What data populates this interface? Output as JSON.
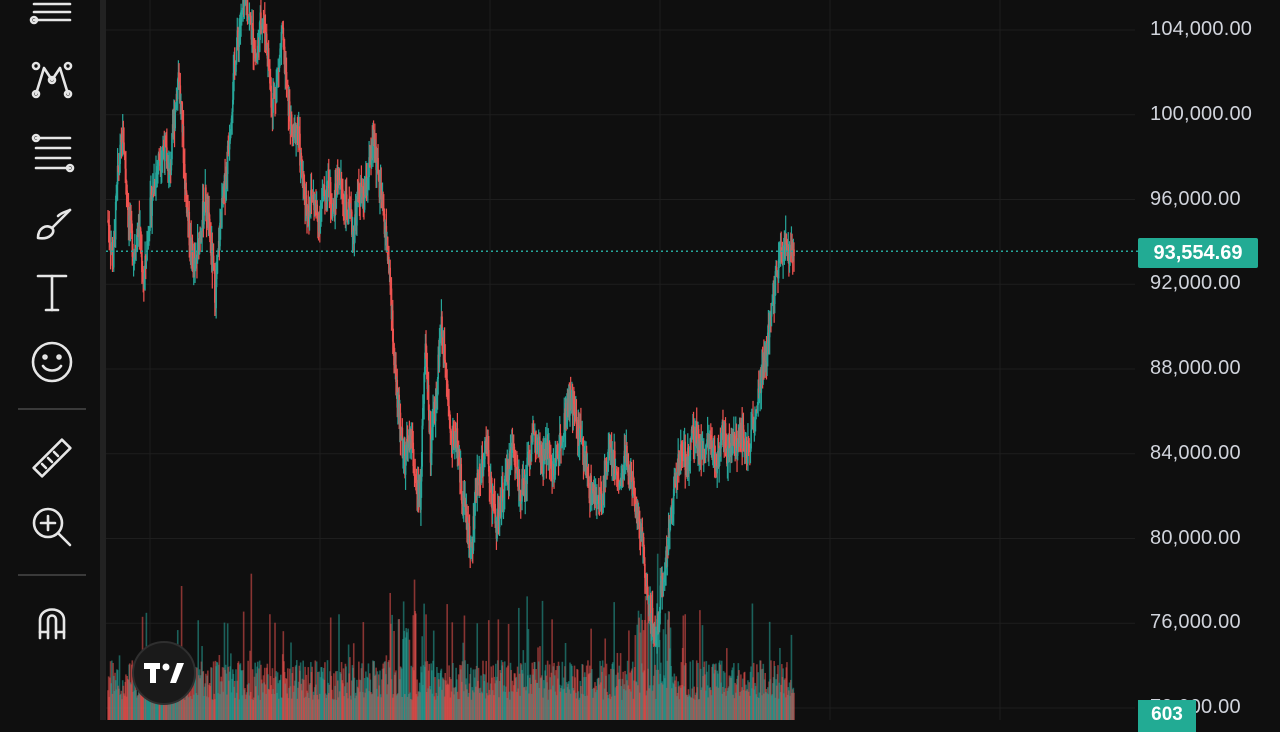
{
  "toolbar": {
    "icons": [
      "horizontal-lines-icon",
      "pattern-icon",
      "fib-retracement-icon",
      "brush-icon",
      "text-icon",
      "emoji-icon",
      "ruler-icon",
      "zoom-in-icon",
      "magnet-icon"
    ]
  },
  "chart_data": {
    "type": "candlestick",
    "title": "",
    "xlabel": "",
    "ylabel": "",
    "y_axis_side": "right",
    "ylim": [
      71000,
      106000
    ],
    "y_ticks": [
      "104,000.00",
      "100,000.00",
      "96,000.00",
      "92,000.00",
      "88,000.00",
      "84,000.00",
      "80,000.00",
      "76,000.00",
      "72,000.00"
    ],
    "last_price": 93554.69,
    "last_price_label": "93,554.69",
    "volume_label": "603",
    "up_color": "#26a69a",
    "down_color": "#ef5350",
    "grid": true,
    "price_path": [
      [
        0,
        95000
      ],
      [
        4,
        93000
      ],
      [
        8,
        97500
      ],
      [
        12,
        99000
      ],
      [
        16,
        95200
      ],
      [
        20,
        93500
      ],
      [
        24,
        94800
      ],
      [
        28,
        92000
      ],
      [
        32,
        95000
      ],
      [
        36,
        96800
      ],
      [
        40,
        98000
      ],
      [
        44,
        98500
      ],
      [
        48,
        97000
      ],
      [
        52,
        100000
      ],
      [
        55,
        102000
      ],
      [
        58,
        99500
      ],
      [
        60,
        97000
      ],
      [
        64,
        94000
      ],
      [
        68,
        92500
      ],
      [
        72,
        94500
      ],
      [
        76,
        96000
      ],
      [
        80,
        94000
      ],
      [
        84,
        91500
      ],
      [
        88,
        95000
      ],
      [
        92,
        97000
      ],
      [
        96,
        100000
      ],
      [
        100,
        103000
      ],
      [
        104,
        104500
      ],
      [
        108,
        105500
      ],
      [
        112,
        104000
      ],
      [
        116,
        102500
      ],
      [
        120,
        104800
      ],
      [
        124,
        103500
      ],
      [
        128,
        100500
      ],
      [
        132,
        101500
      ],
      [
        136,
        103800
      ],
      [
        140,
        101000
      ],
      [
        144,
        98800
      ],
      [
        148,
        99500
      ],
      [
        152,
        96800
      ],
      [
        156,
        95500
      ],
      [
        160,
        96200
      ],
      [
        164,
        95000
      ],
      [
        168,
        96000
      ],
      [
        172,
        96800
      ],
      [
        176,
        95400
      ],
      [
        180,
        97200
      ],
      [
        184,
        96000
      ],
      [
        188,
        95200
      ],
      [
        192,
        94500
      ],
      [
        196,
        96400
      ],
      [
        200,
        95800
      ],
      [
        204,
        97500
      ],
      [
        208,
        98800
      ],
      [
        212,
        96500
      ],
      [
        216,
        95000
      ],
      [
        220,
        92500
      ],
      [
        224,
        88000
      ],
      [
        228,
        85500
      ],
      [
        232,
        83500
      ],
      [
        236,
        85000
      ],
      [
        240,
        83000
      ],
      [
        244,
        82000
      ],
      [
        248,
        89500
      ],
      [
        252,
        84000
      ],
      [
        256,
        86500
      ],
      [
        260,
        90000
      ],
      [
        264,
        88500
      ],
      [
        268,
        84500
      ],
      [
        272,
        85000
      ],
      [
        276,
        82500
      ],
      [
        280,
        81000
      ],
      [
        284,
        79200
      ],
      [
        288,
        82500
      ],
      [
        292,
        83500
      ],
      [
        296,
        84500
      ],
      [
        300,
        82000
      ],
      [
        304,
        80500
      ],
      [
        308,
        82000
      ],
      [
        312,
        83000
      ],
      [
        316,
        84500
      ],
      [
        320,
        83000
      ],
      [
        324,
        82000
      ],
      [
        328,
        83500
      ],
      [
        332,
        85000
      ],
      [
        336,
        84000
      ],
      [
        340,
        83500
      ],
      [
        344,
        84500
      ],
      [
        348,
        83000
      ],
      [
        352,
        84200
      ],
      [
        356,
        85500
      ],
      [
        360,
        86500
      ],
      [
        364,
        86000
      ],
      [
        368,
        85000
      ],
      [
        372,
        84000
      ],
      [
        376,
        82500
      ],
      [
        380,
        82000
      ],
      [
        384,
        81500
      ],
      [
        388,
        83000
      ],
      [
        392,
        84500
      ],
      [
        396,
        83500
      ],
      [
        400,
        82500
      ],
      [
        404,
        84000
      ],
      [
        408,
        83000
      ],
      [
        412,
        81500
      ],
      [
        416,
        80500
      ],
      [
        420,
        78500
      ],
      [
        424,
        76500
      ],
      [
        428,
        75000
      ],
      [
        432,
        77500
      ],
      [
        436,
        79000
      ],
      [
        440,
        81000
      ],
      [
        444,
        83000
      ],
      [
        448,
        84500
      ],
      [
        452,
        83500
      ],
      [
        456,
        84500
      ],
      [
        460,
        85000
      ],
      [
        464,
        84000
      ],
      [
        468,
        84500
      ],
      [
        472,
        84000
      ],
      [
        476,
        83500
      ],
      [
        480,
        85500
      ],
      [
        484,
        84000
      ],
      [
        488,
        85000
      ],
      [
        492,
        84500
      ],
      [
        496,
        85000
      ],
      [
        500,
        84000
      ],
      [
        504,
        85500
      ],
      [
        508,
        86500
      ],
      [
        512,
        88000
      ],
      [
        516,
        89500
      ],
      [
        520,
        91500
      ],
      [
        524,
        93000
      ],
      [
        528,
        94000
      ],
      [
        532,
        93200
      ],
      [
        536,
        93555
      ]
    ],
    "plot_width_units": 870
  }
}
